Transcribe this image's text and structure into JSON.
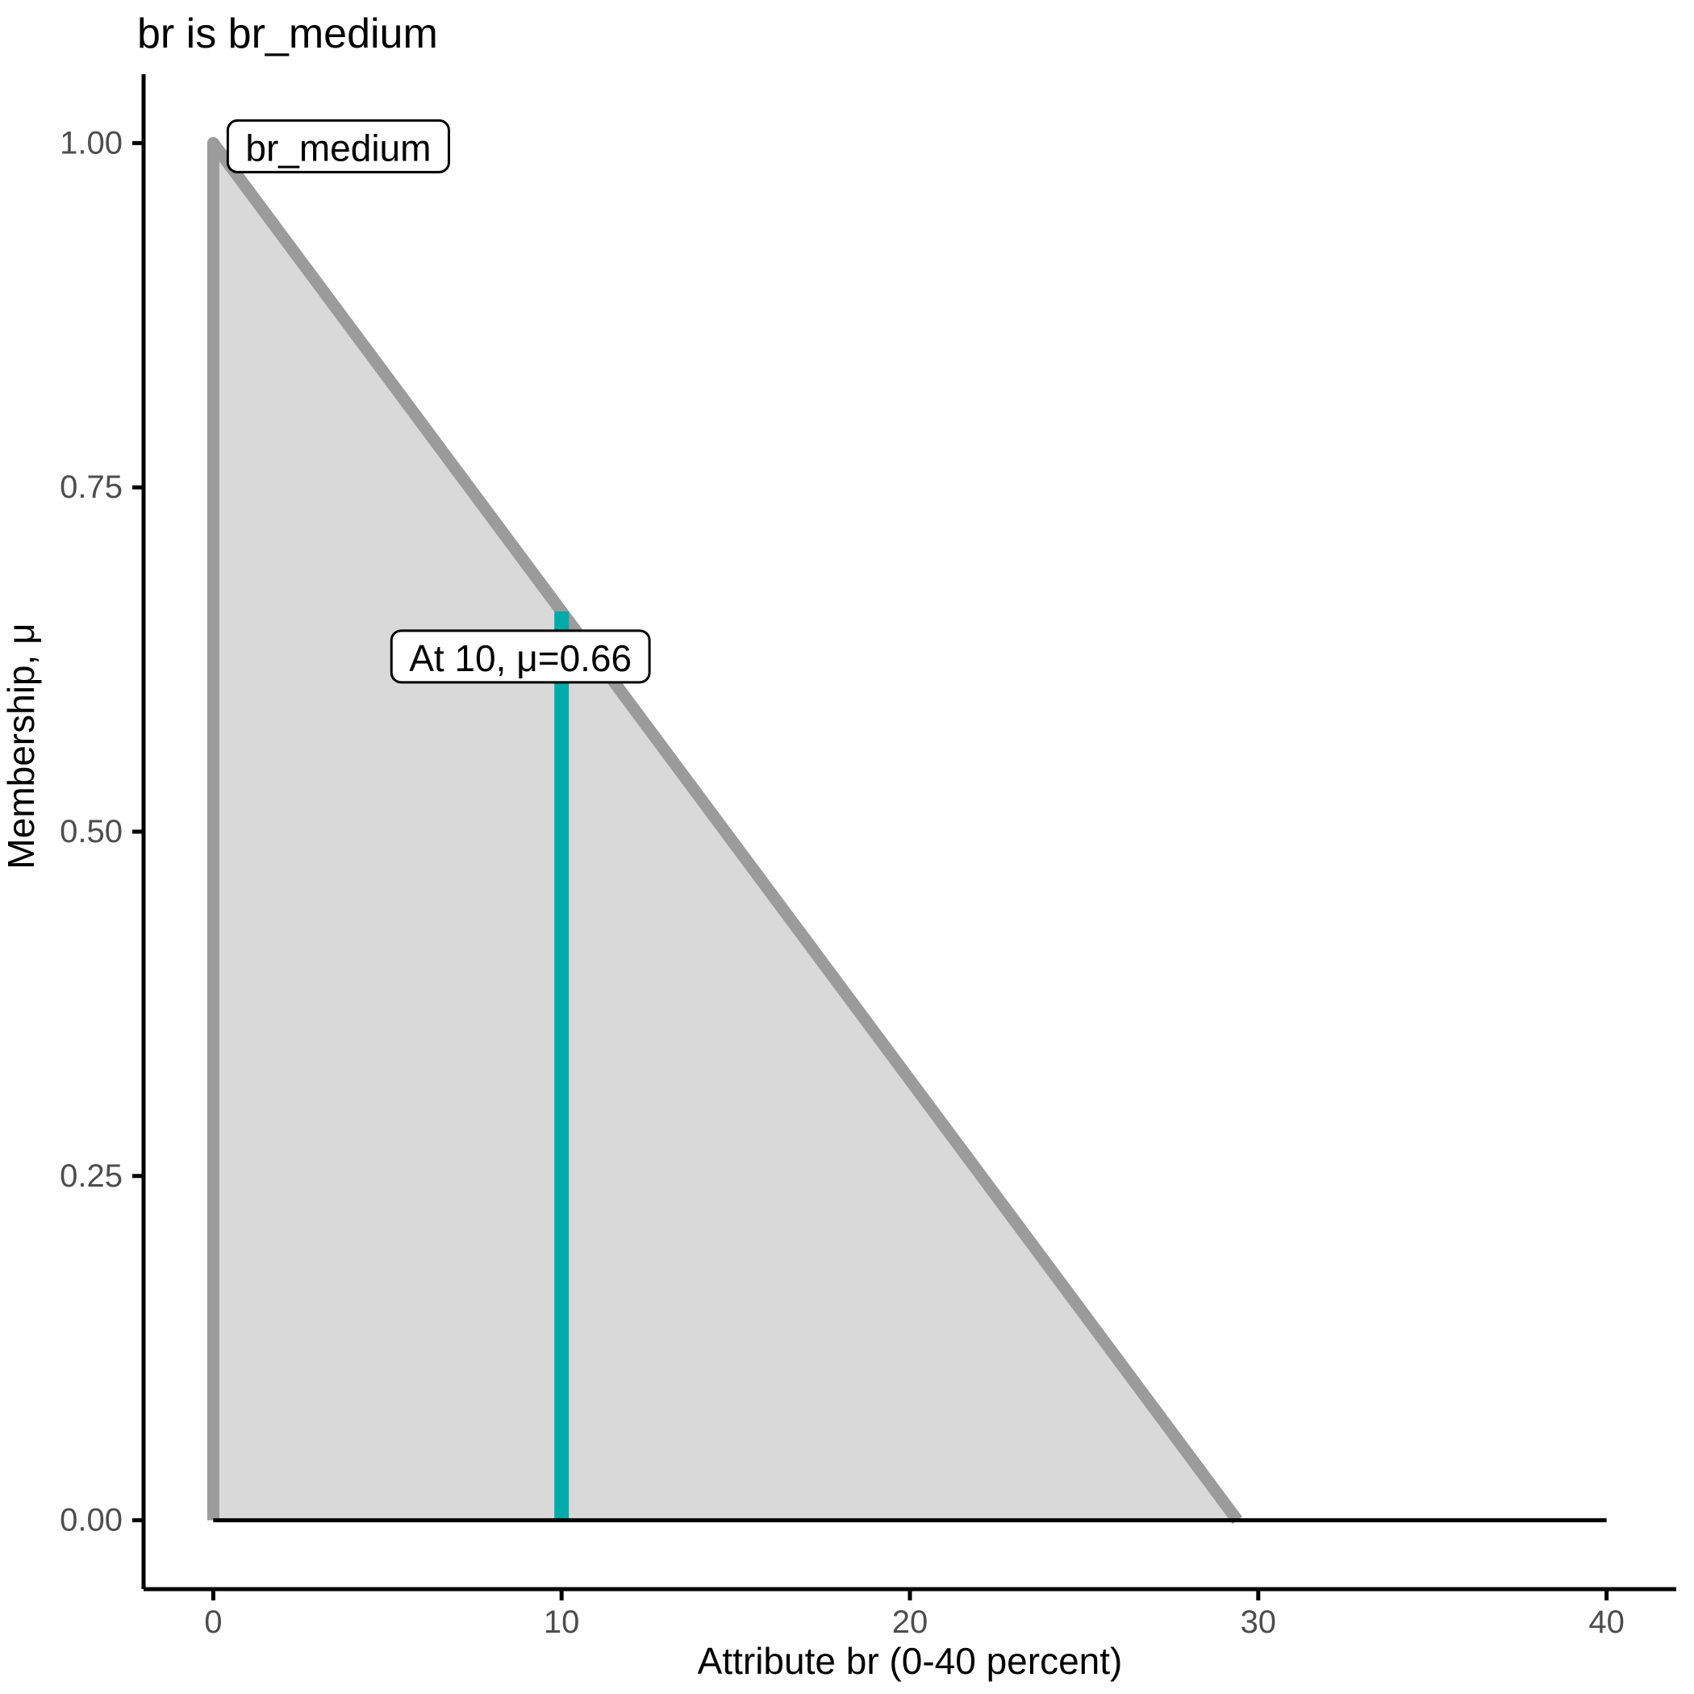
{
  "title": "br is br_medium",
  "chart_data": {
    "type": "area",
    "title": "br is br_medium",
    "xlabel": "Attribute br (0-40 percent)",
    "ylabel": "Membership, μ",
    "xlim": [
      0,
      40
    ],
    "ylim": [
      0,
      1
    ],
    "grid": false,
    "legend": "none",
    "x_ticks": {
      "values": [
        0,
        10,
        20,
        30,
        40
      ],
      "labels": [
        "0",
        "10",
        "20",
        "30",
        "40"
      ]
    },
    "y_ticks": {
      "values": [
        1.0,
        0.75,
        0.5,
        0.25,
        0.0
      ],
      "labels": [
        "1.00",
        "0.75",
        "0.50",
        "0.25",
        "0.00"
      ]
    },
    "series": [
      {
        "name": "br_medium",
        "kind": "membership-function",
        "points": [
          [
            0,
            0
          ],
          [
            0,
            1
          ],
          [
            29.4,
            0
          ]
        ],
        "fill": "#d9d9d9",
        "stroke": "#9b9b9b"
      },
      {
        "name": "zero-baseline",
        "kind": "line",
        "points": [
          [
            0,
            0
          ],
          [
            40,
            0
          ]
        ],
        "stroke": "#000000"
      }
    ],
    "indicator": {
      "x": 10,
      "mu": 0.66,
      "color": "#00aba9"
    },
    "annotations": [
      {
        "id": "set-label",
        "text": "br_medium",
        "anchor": [
          0,
          1
        ]
      },
      {
        "id": "indicator-label",
        "text": "At 10, μ=0.66",
        "anchor": [
          10,
          0.66
        ]
      }
    ],
    "colors": {
      "fill": "#d9d9d9",
      "outline": "#9b9b9b",
      "indicator": "#00aba9",
      "axis": "#000000",
      "tick_label": "#4d4d4d",
      "annotation_bg": "#ffffff",
      "annotation_border": "#000000"
    }
  }
}
